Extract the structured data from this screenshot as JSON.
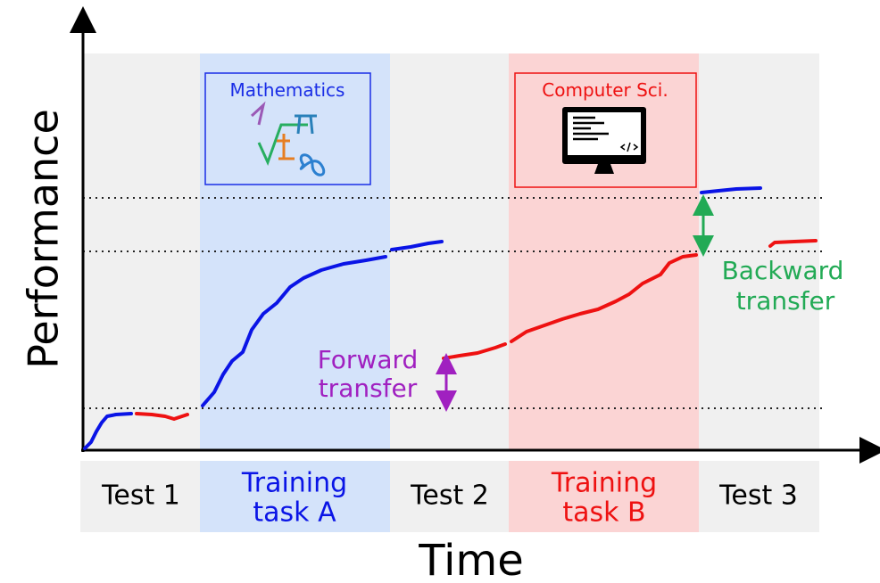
{
  "axes": {
    "y_label": "Performance",
    "x_label": "Time"
  },
  "task_boxes": [
    {
      "label": "Mathematics"
    },
    {
      "label": "Computer Sci."
    }
  ],
  "phases": [
    {
      "lines": [
        "Test 1"
      ]
    },
    {
      "lines": [
        "Training",
        "task A"
      ]
    },
    {
      "lines": [
        "Test 2"
      ]
    },
    {
      "lines": [
        "Training",
        "task B"
      ]
    },
    {
      "lines": [
        "Test 3"
      ]
    }
  ],
  "annotations": {
    "forward": [
      "Forward",
      "transfer"
    ],
    "backward": [
      "Backward",
      "transfer"
    ]
  }
}
